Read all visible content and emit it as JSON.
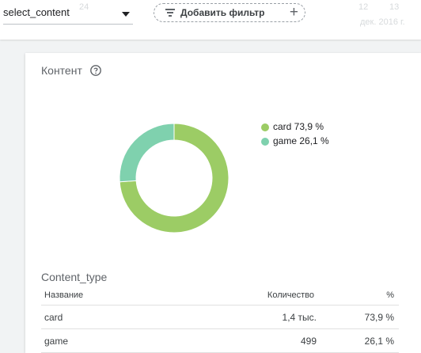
{
  "toolbar": {
    "select_value": "select_content",
    "filter_label": "Добавить фильтр",
    "faint_text": [
      "24",
      "12",
      "13",
      "дек. 2016 г."
    ]
  },
  "widget": {
    "title": "Контент",
    "help_icon": "help-circle-icon",
    "chart_data": {
      "type": "pie",
      "donut": true,
      "labels": [
        "card",
        "game"
      ],
      "values": [
        73.9,
        26.1
      ],
      "colors": [
        "#9ccc65",
        "#7fd1ae"
      ],
      "legend": [
        "card 73,9 %",
        "game 26,1 %"
      ],
      "legend_position": "right"
    },
    "table": {
      "title": "Content_type",
      "headers": [
        "Название",
        "Количество",
        "%"
      ],
      "rows": [
        [
          "card",
          "1,4 тыс.",
          "73,9 %"
        ],
        [
          "game",
          "499",
          "26,1 %"
        ]
      ]
    }
  }
}
